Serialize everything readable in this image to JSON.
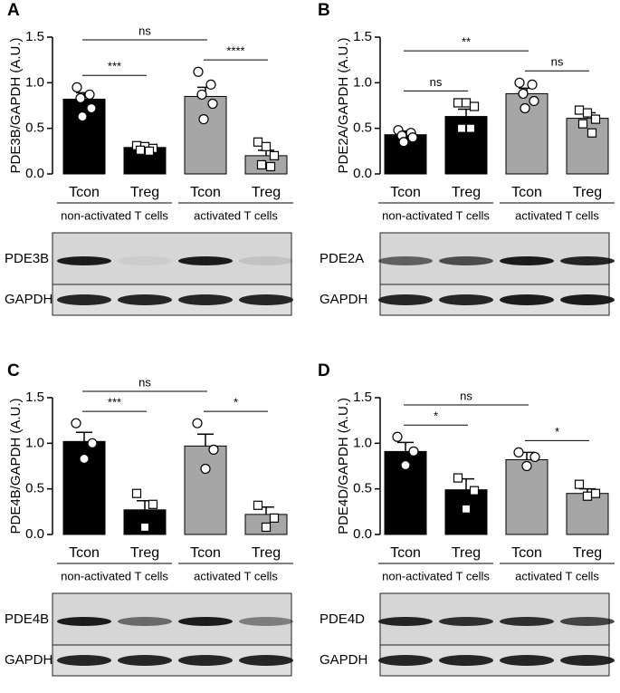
{
  "chart_data": [
    {
      "type": "bar",
      "panel": "A",
      "ylabel": "PDE3B/GAPDH (A.U.)",
      "categories": [
        "Tcon",
        "Treg",
        "Tcon",
        "Treg"
      ],
      "groups": [
        "non-activated T cells",
        "activated T cells"
      ],
      "values": [
        0.82,
        0.29,
        0.85,
        0.2
      ],
      "errors": [
        0.07,
        0.03,
        0.1,
        0.06
      ],
      "points": [
        [
          0.95,
          0.87,
          0.83,
          0.72,
          0.63
        ],
        [
          0.31,
          0.3,
          0.28,
          0.26,
          0.25
        ],
        [
          1.12,
          0.98,
          0.87,
          0.77,
          0.6
        ],
        [
          0.35,
          0.3,
          0.2,
          0.1,
          0.08
        ]
      ],
      "colors": [
        "#000000",
        "#000000",
        "#a6a6a6",
        "#a6a6a6"
      ],
      "markers": [
        "circle",
        "square",
        "circle",
        "square"
      ],
      "annotations": [
        "ns",
        "***",
        "****"
      ],
      "ylim": [
        0,
        1.5
      ],
      "yticks": [
        {
          "value": 0,
          "label": "0.0"
        },
        0.5,
        {
          "value": 1,
          "label": "1.0"
        },
        1.5
      ],
      "blots": [
        "PDE3B",
        "GAPDH"
      ]
    },
    {
      "type": "bar",
      "panel": "B",
      "ylabel": "PDE2A/GAPDH (A.U.)",
      "categories": [
        "Tcon",
        "Treg",
        "Tcon",
        "Treg"
      ],
      "groups": [
        "non-activated T cells",
        "activated T cells"
      ],
      "values": [
        0.43,
        0.63,
        0.88,
        0.61
      ],
      "errors": [
        0.04,
        0.08,
        0.06,
        0.06
      ],
      "points": [
        [
          0.48,
          0.45,
          0.42,
          0.4,
          0.35
        ],
        [
          0.78,
          0.78,
          0.74,
          0.5,
          0.5
        ],
        [
          1.0,
          0.98,
          0.88,
          0.8,
          0.72
        ],
        [
          0.7,
          0.67,
          0.6,
          0.55,
          0.45
        ]
      ],
      "colors": [
        "#000000",
        "#000000",
        "#a6a6a6",
        "#a6a6a6"
      ],
      "markers": [
        "circle",
        "square",
        "circle",
        "square"
      ],
      "annotations": [
        "**",
        "ns",
        "ns"
      ],
      "ylim": [
        0,
        1.5
      ],
      "yticks": [
        {
          "value": 0,
          "label": "0.0"
        },
        0.5,
        {
          "value": 1,
          "label": "1.0"
        },
        1.5
      ],
      "blots": [
        "PDE2A",
        "GAPDH"
      ]
    },
    {
      "type": "bar",
      "panel": "C",
      "ylabel": "PDE4B/GAPDH (A.U.)",
      "categories": [
        "Tcon",
        "Treg",
        "Tcon",
        "Treg"
      ],
      "groups": [
        "non-activated T cells",
        "activated T cells"
      ],
      "values": [
        1.02,
        0.27,
        0.97,
        0.22
      ],
      "errors": [
        0.1,
        0.1,
        0.13,
        0.08
      ],
      "points": [
        [
          1.22,
          1.0,
          0.83
        ],
        [
          0.45,
          0.33,
          0.08
        ],
        [
          1.22,
          0.93,
          0.72
        ],
        [
          0.32,
          0.18,
          0.08
        ]
      ],
      "colors": [
        "#000000",
        "#000000",
        "#a6a6a6",
        "#a6a6a6"
      ],
      "markers": [
        "circle",
        "square",
        "circle",
        "square"
      ],
      "annotations": [
        "ns",
        "***",
        "*"
      ],
      "ylim": [
        0,
        1.5
      ],
      "yticks": [
        {
          "value": 0,
          "label": "0.0"
        },
        0.5,
        {
          "value": 1,
          "label": "1.0"
        },
        1.5
      ],
      "blots": [
        "PDE4B",
        "GAPDH"
      ]
    },
    {
      "type": "bar",
      "panel": "D",
      "ylabel": "PDE4D/GAPDH (A.U.)",
      "categories": [
        "Tcon",
        "Treg",
        "Tcon",
        "Treg"
      ],
      "groups": [
        "non-activated T cells",
        "activated T cells"
      ],
      "values": [
        0.91,
        0.49,
        0.82,
        0.45
      ],
      "errors": [
        0.1,
        0.12,
        0.08,
        0.05
      ],
      "points": [
        [
          1.07,
          0.91,
          0.76
        ],
        [
          0.62,
          0.48,
          0.28
        ],
        [
          0.9,
          0.85,
          0.75
        ],
        [
          0.55,
          0.45,
          0.42
        ]
      ],
      "colors": [
        "#000000",
        "#000000",
        "#a6a6a6",
        "#a6a6a6"
      ],
      "markers": [
        "circle",
        "square",
        "circle",
        "square"
      ],
      "annotations": [
        "ns",
        "*",
        "*"
      ],
      "ylim": [
        0,
        1.5
      ],
      "yticks": [
        {
          "value": 0,
          "label": "0.0"
        },
        0.5,
        {
          "value": 1,
          "label": "1.0"
        },
        1.5
      ],
      "blots": [
        "PDE4D",
        "GAPDH"
      ]
    }
  ]
}
